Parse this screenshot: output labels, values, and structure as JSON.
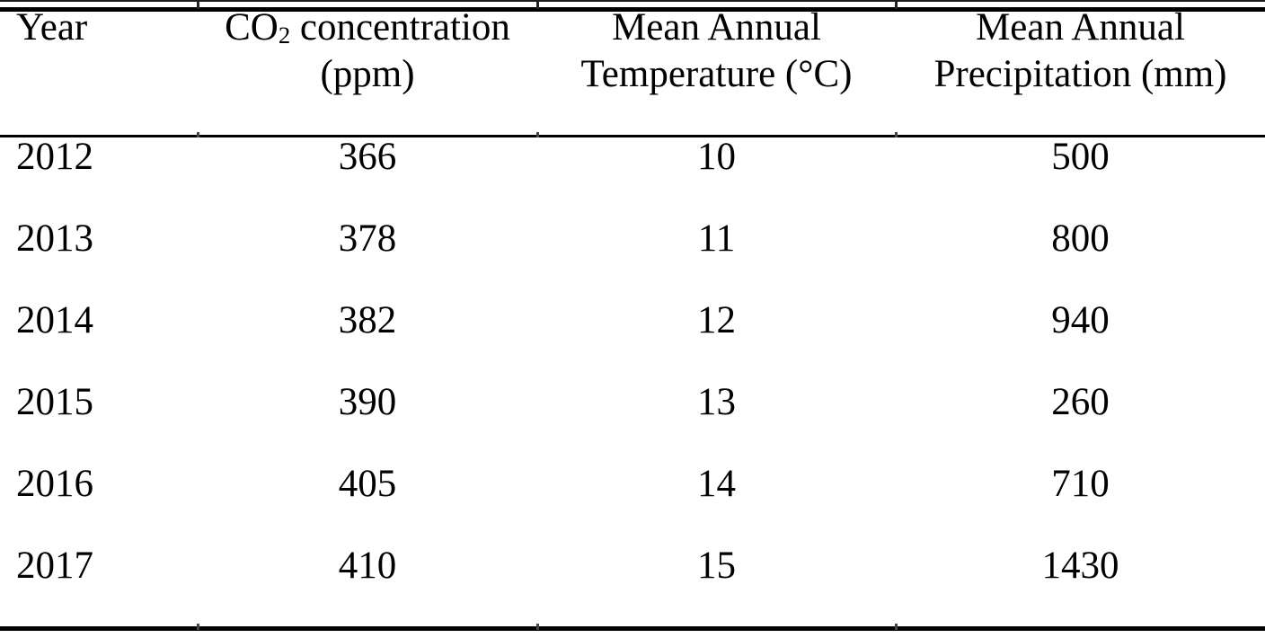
{
  "table": {
    "headers": {
      "year": "Year",
      "co2_line1": {
        "prefix": "CO",
        "subscript": "2",
        "suffix": " concentration"
      },
      "co2_line2": "(ppm)",
      "temp_line1": "Mean Annual",
      "temp_line2": "Temperature (°C)",
      "precip_line1": "Mean Annual",
      "precip_line2": "Precipitation (mm)"
    },
    "rows": [
      {
        "year": "2012",
        "co2_ppm": "366",
        "temp_c": "10",
        "precip_mm": "500"
      },
      {
        "year": "2013",
        "co2_ppm": "378",
        "temp_c": "11",
        "precip_mm": "800"
      },
      {
        "year": "2014",
        "co2_ppm": "382",
        "temp_c": "12",
        "precip_mm": "940"
      },
      {
        "year": "2015",
        "co2_ppm": "390",
        "temp_c": "13",
        "precip_mm": "260"
      },
      {
        "year": "2016",
        "co2_ppm": "405",
        "temp_c": "14",
        "precip_mm": "710"
      },
      {
        "year": "2017",
        "co2_ppm": "410",
        "temp_c": "15",
        "precip_mm": "1430"
      }
    ]
  },
  "chart_data": {
    "type": "table",
    "columns": [
      "Year",
      "CO₂ concentration (ppm)",
      "Mean Annual Temperature (°C)",
      "Mean Annual Precipitation (mm)"
    ],
    "rows": [
      [
        2012,
        366,
        10,
        500
      ],
      [
        2013,
        378,
        11,
        800
      ],
      [
        2014,
        382,
        12,
        940
      ],
      [
        2015,
        390,
        13,
        260
      ],
      [
        2016,
        405,
        14,
        710
      ],
      [
        2017,
        410,
        15,
        1430
      ]
    ]
  },
  "style": {
    "background_color": "#ffffff",
    "text_color": "#000000",
    "rule_color": "#000000"
  }
}
